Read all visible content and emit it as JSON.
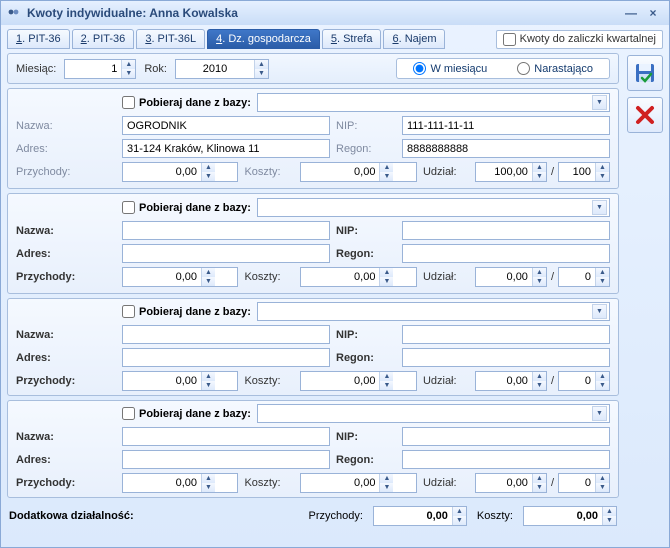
{
  "window": {
    "title": "Kwoty indywidualne: Anna Kowalska"
  },
  "tabs": [
    {
      "pre": "1",
      "label": ". PIT-36"
    },
    {
      "pre": "2",
      "label": ". PIT-36"
    },
    {
      "pre": "3",
      "label": ". PIT-36L"
    },
    {
      "pre": "4",
      "label": ". Dz. gospodarcza"
    },
    {
      "pre": "5",
      "label": ". Strefa"
    },
    {
      "pre": "6",
      "label": ". Najem"
    }
  ],
  "activeTab": 3,
  "quarterly_label": "Kwoty do zaliczki kwartalnej",
  "period": {
    "month_label": "Miesiąc:",
    "month": "1",
    "year_label": "Rok:",
    "year": "2010",
    "radio_month": "W miesiącu",
    "radio_cum": "Narastająco"
  },
  "labels": {
    "db": "Pobieraj dane z bazy:",
    "nazwa": "Nazwa:",
    "adres": "Adres:",
    "nip": "NIP:",
    "regon": "Regon:",
    "przychody": "Przychody:",
    "koszty": "Koszty:",
    "udzial": "Udział:",
    "dodatkowa": "Dodatkowa działalność:"
  },
  "groups": [
    {
      "dim": true,
      "nazwa": "OGRODNIK",
      "adres": "31-124 Kraków, Klinowa 11",
      "nip": "111-111-11-11",
      "regon": "8888888888",
      "przychody": "0,00",
      "koszty": "0,00",
      "udzial_a": "100,00",
      "udzial_b": "100"
    },
    {
      "dim": false,
      "nazwa": "",
      "adres": "",
      "nip": "",
      "regon": "",
      "przychody": "0,00",
      "koszty": "0,00",
      "udzial_a": "0,00",
      "udzial_b": "0"
    },
    {
      "dim": false,
      "nazwa": "",
      "adres": "",
      "nip": "",
      "regon": "",
      "przychody": "0,00",
      "koszty": "0,00",
      "udzial_a": "0,00",
      "udzial_b": "0"
    },
    {
      "dim": false,
      "nazwa": "",
      "adres": "",
      "nip": "",
      "regon": "",
      "przychody": "0,00",
      "koszty": "0,00",
      "udzial_a": "0,00",
      "udzial_b": "0"
    }
  ],
  "footer": {
    "przychody": "0,00",
    "koszty": "0,00"
  },
  "colors": {
    "accent": "#2b5da8",
    "border": "#9ab3d8",
    "panel_bg_top": "#f5f9ff",
    "panel_bg_bot": "#e8f0fc"
  }
}
